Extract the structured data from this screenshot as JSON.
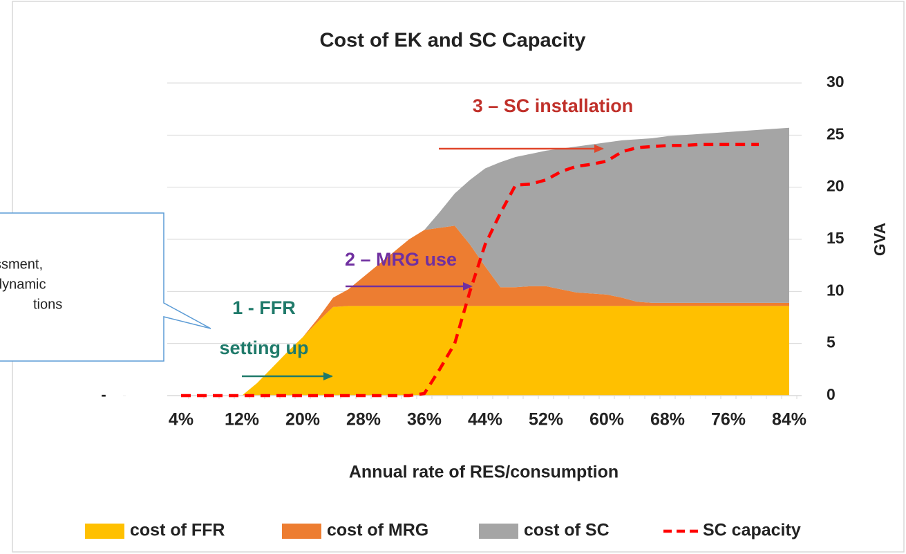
{
  "chart_data": {
    "type": "area",
    "title": "Cost of EK and SC Capacity",
    "x_label": "Annual rate of RES/consumption",
    "y2_label": "GVA",
    "categories": [
      "4%",
      null,
      null,
      null,
      "12%",
      null,
      null,
      null,
      "20%",
      null,
      null,
      null,
      "28%",
      null,
      null,
      null,
      "36%",
      null,
      null,
      null,
      "44%",
      null,
      null,
      null,
      "52%",
      null,
      null,
      null,
      "60%",
      null,
      null,
      null,
      "68%",
      null,
      null,
      null,
      "76%",
      null,
      null,
      null,
      "84%"
    ],
    "ylim": [
      0,
      30
    ],
    "yticks": [
      {
        "value": 0,
        "label": "-"
      }
    ],
    "y2lim": [
      0,
      30
    ],
    "y2ticks": [
      0,
      5,
      10,
      15,
      20,
      25,
      30
    ],
    "grid": true,
    "legend": "bottom",
    "series": [
      {
        "name": "cost of FFR",
        "color": "#ffc000",
        "stack": true,
        "values": [
          0,
          0,
          0,
          0,
          0,
          1.2,
          2.7,
          4.2,
          5.6,
          7.1,
          8.5,
          8.6,
          8.6,
          8.6,
          8.6,
          8.6,
          8.6,
          8.6,
          8.6,
          8.6,
          8.6,
          8.6,
          8.6,
          8.6,
          8.6,
          8.6,
          8.6,
          8.6,
          8.6,
          8.6,
          8.6,
          8.6,
          8.6,
          8.6,
          8.6,
          8.6,
          8.6,
          8.6,
          8.6,
          8.6,
          8.6
        ]
      },
      {
        "name": "cost of MRG",
        "color": "#ed7d31",
        "stack": true,
        "values": [
          0,
          0,
          0,
          0,
          0,
          0,
          0,
          0,
          0,
          0.3,
          0.9,
          1.6,
          2.8,
          4.0,
          5.2,
          6.4,
          7.3,
          7.5,
          7.7,
          5.9,
          3.8,
          1.8,
          1.8,
          1.9,
          1.9,
          1.6,
          1.3,
          1.2,
          1.1,
          0.8,
          0.4,
          0.3,
          0.3,
          0.3,
          0.3,
          0.3,
          0.3,
          0.3,
          0.3,
          0.3,
          0.3
        ]
      },
      {
        "name": "cost of SC",
        "color": "#a5a5a5",
        "stack": true,
        "values": [
          0,
          0,
          0,
          0,
          0,
          0,
          0,
          0,
          0,
          0,
          0,
          0,
          0,
          0,
          0,
          0,
          0,
          1.5,
          3.1,
          6.2,
          9.4,
          12.0,
          12.5,
          12.7,
          13.0,
          13.5,
          14.0,
          14.3,
          14.6,
          15.1,
          15.6,
          15.8,
          16.0,
          16.1,
          16.2,
          16.3,
          16.4,
          16.5,
          16.6,
          16.7,
          16.8
        ]
      },
      {
        "name": "SC capacity",
        "color": "#ff0000",
        "type": "line",
        "dashed": true,
        "axis": "y2",
        "values": [
          0,
          0,
          0,
          0,
          0,
          0,
          0,
          0,
          0,
          0,
          0,
          0,
          0,
          0,
          0,
          0,
          0.2,
          2.5,
          5.0,
          10.0,
          14.5,
          17.5,
          20.2,
          20.3,
          20.7,
          21.5,
          22.0,
          22.2,
          22.5,
          23.4,
          23.8,
          23.9,
          24.0,
          24.0,
          24.1,
          24.1,
          24.1,
          24.1,
          24.1,
          null,
          null
        ]
      }
    ],
    "annotations": [
      {
        "lines": [
          "3 – SC installation"
        ],
        "color": "#c0302a",
        "arrow_color": "#e0452a"
      },
      {
        "lines": [
          "2 – MRG use"
        ],
        "color": "#7030a0",
        "arrow_color": "#7030a0"
      },
      {
        "lines": [
          "1 - FFR",
          "setting up"
        ],
        "color": "#1f7a6a",
        "arrow_color": "#1f7a6a"
      }
    ],
    "callout": [
      "ssment,",
      "dynamic",
      "tions"
    ]
  }
}
